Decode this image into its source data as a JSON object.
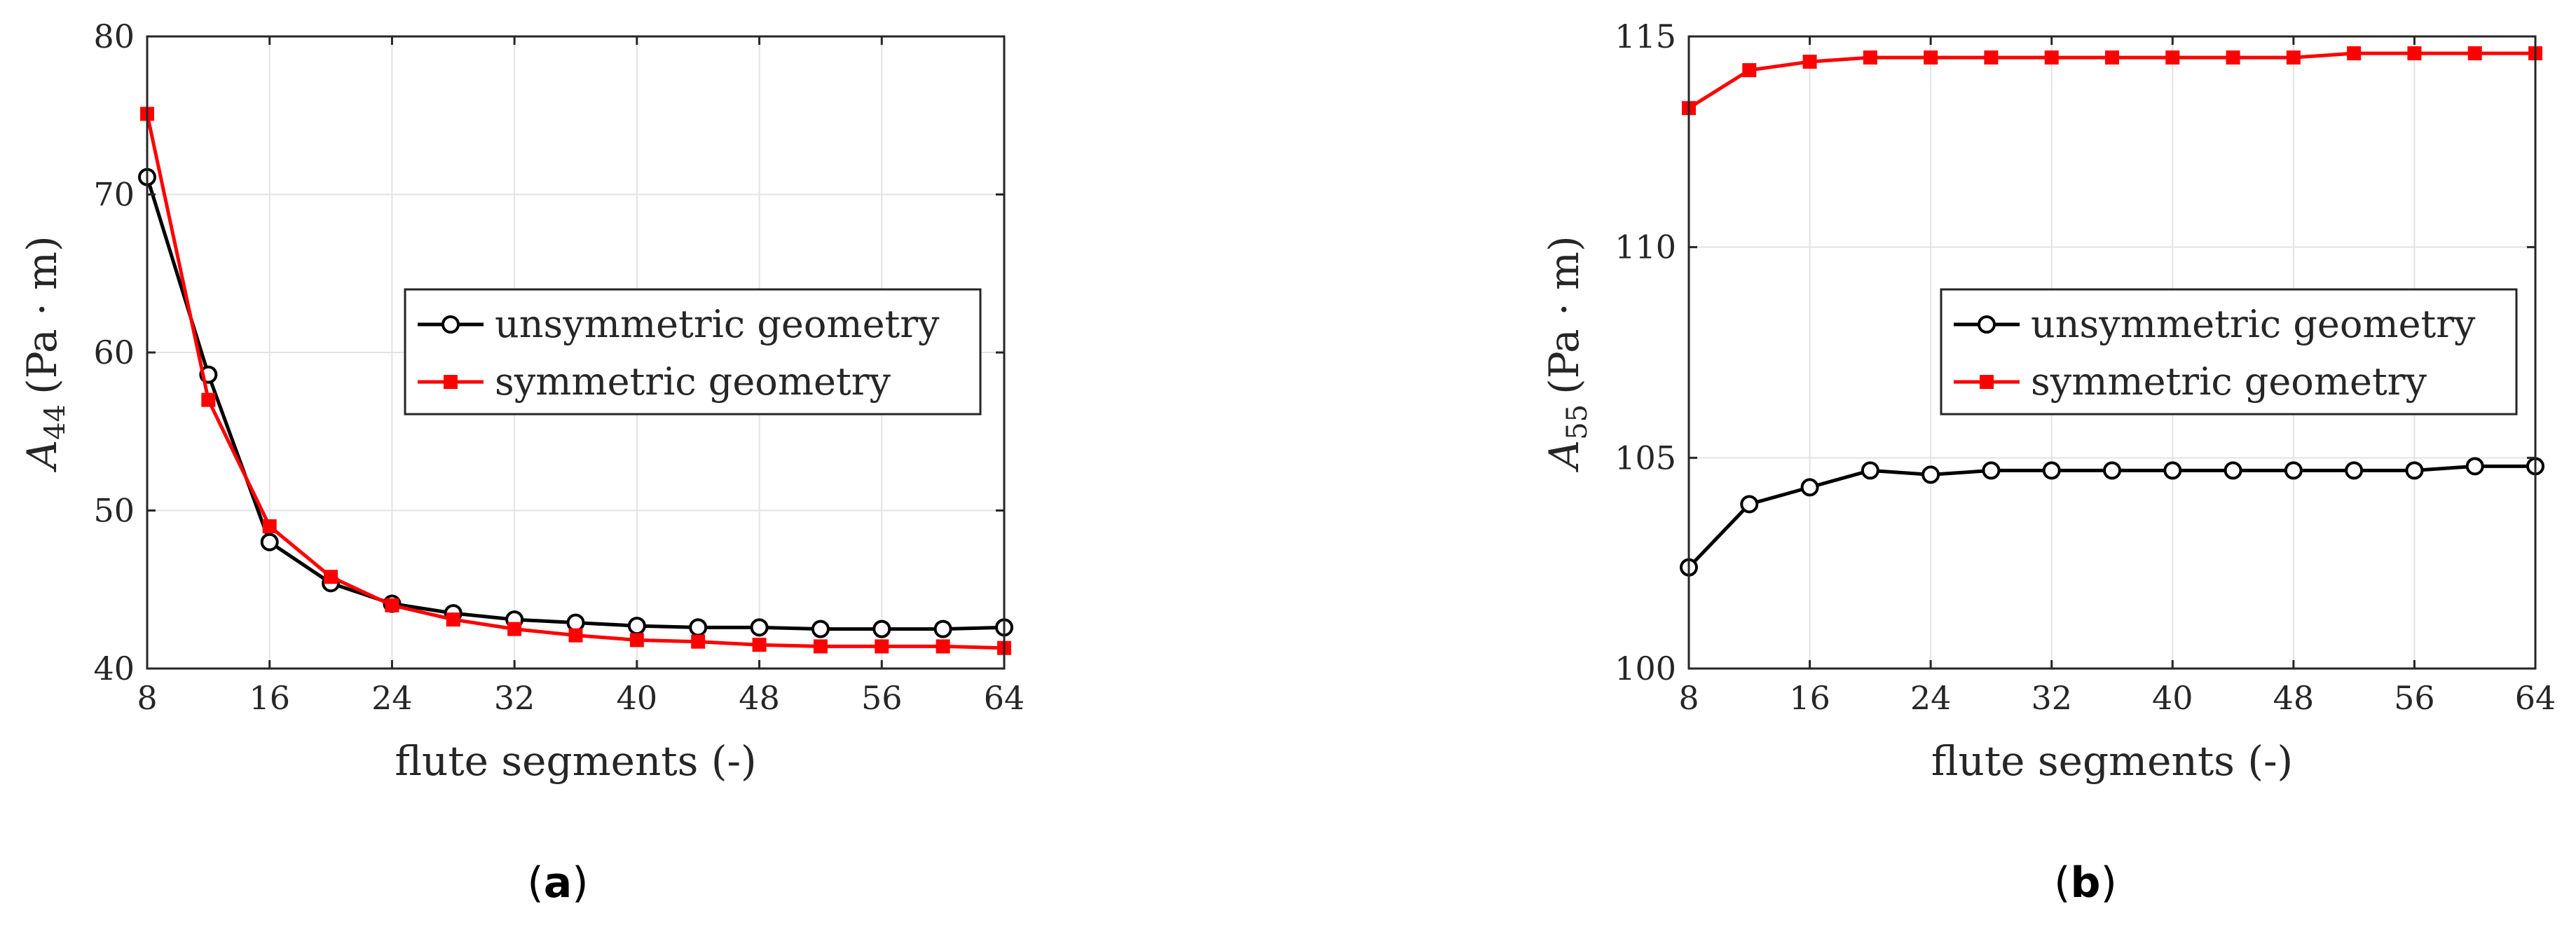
{
  "chart_data": [
    {
      "type": "line",
      "panel_label": "a",
      "xlabel": "flute segments (-)",
      "ylabel_main": "A",
      "ylabel_sub": "44",
      "ylabel_unit": "(Pa · m)",
      "xlim": [
        8,
        64
      ],
      "ylim": [
        40,
        80
      ],
      "xticks": [
        "8",
        "16",
        "24",
        "32",
        "40",
        "48",
        "56",
        "64"
      ],
      "yticks": [
        "40",
        "50",
        "60",
        "70",
        "80"
      ],
      "grid": true,
      "legend_position": "middle-right",
      "x": [
        8,
        12,
        16,
        20,
        24,
        28,
        32,
        36,
        40,
        44,
        48,
        52,
        56,
        60,
        64
      ],
      "series": [
        {
          "name": "unsymmetric geometry",
          "color": "#000000",
          "marker": "open-circle",
          "values": [
            71.1,
            58.6,
            48.0,
            45.4,
            44.1,
            43.5,
            43.1,
            42.9,
            42.7,
            42.6,
            42.6,
            42.5,
            42.5,
            42.5,
            42.6
          ]
        },
        {
          "name": "symmetric geometry",
          "color": "#ff0000",
          "marker": "filled-square",
          "values": [
            75.1,
            57.0,
            49.0,
            45.8,
            44.0,
            43.1,
            42.5,
            42.1,
            41.8,
            41.7,
            41.5,
            41.4,
            41.4,
            41.4,
            41.3
          ]
        }
      ]
    },
    {
      "type": "line",
      "panel_label": "b",
      "xlabel": "flute segments (-)",
      "ylabel_main": "A",
      "ylabel_sub": "55",
      "ylabel_unit": "(Pa · m)",
      "xlim": [
        8,
        64
      ],
      "ylim": [
        100,
        115
      ],
      "xticks": [
        "8",
        "16",
        "24",
        "32",
        "40",
        "48",
        "56",
        "64"
      ],
      "yticks": [
        "100",
        "105",
        "110",
        "115"
      ],
      "grid": true,
      "legend_position": "middle-right",
      "x": [
        8,
        12,
        16,
        20,
        24,
        28,
        32,
        36,
        40,
        44,
        48,
        52,
        56,
        60,
        64
      ],
      "series": [
        {
          "name": "unsymmetric geometry",
          "color": "#000000",
          "marker": "open-circle",
          "values": [
            102.4,
            103.9,
            104.3,
            104.7,
            104.6,
            104.7,
            104.7,
            104.7,
            104.7,
            104.7,
            104.7,
            104.7,
            104.7,
            104.8,
            104.8
          ]
        },
        {
          "name": "symmetric geometry",
          "color": "#ff0000",
          "marker": "filled-square",
          "values": [
            113.3,
            114.2,
            114.4,
            114.5,
            114.5,
            114.5,
            114.5,
            114.5,
            114.5,
            114.5,
            114.5,
            114.6,
            114.6,
            114.6,
            114.6
          ]
        }
      ]
    }
  ]
}
